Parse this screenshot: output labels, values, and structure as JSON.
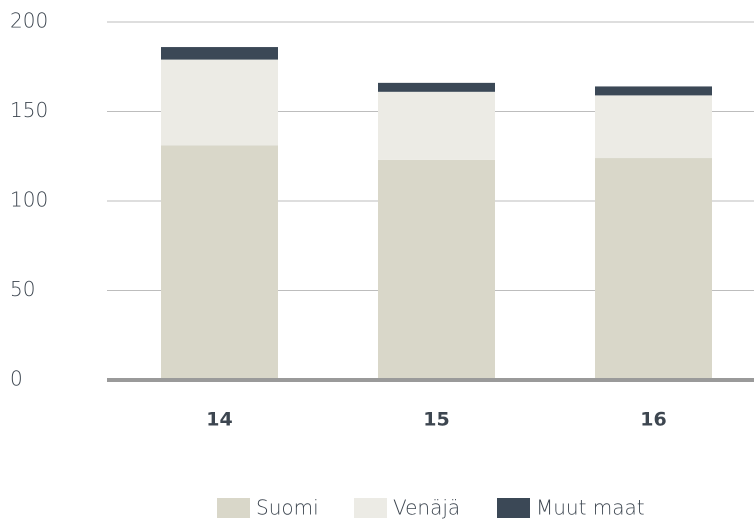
{
  "chart_data": {
    "type": "bar",
    "stacked": true,
    "categories": [
      "14",
      "15",
      "16"
    ],
    "series": [
      {
        "name": "Suomi",
        "color": "#d9d7c9",
        "values": [
          131,
          123,
          124
        ]
      },
      {
        "name": "Venäjä",
        "color": "#ecebe5",
        "values": [
          48,
          38,
          35
        ]
      },
      {
        "name": "Muut maat",
        "color": "#3b4856",
        "values": [
          7,
          5,
          5
        ]
      }
    ],
    "ylim": [
      0,
      200
    ],
    "yticks": [
      0,
      50,
      100,
      150,
      200
    ],
    "grid": true,
    "legend": "bottom"
  }
}
